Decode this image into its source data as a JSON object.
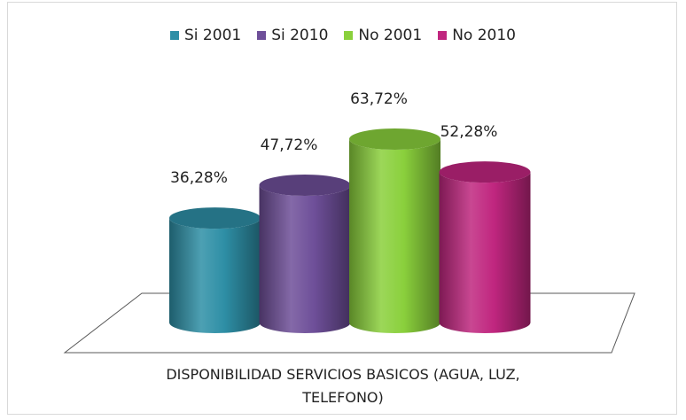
{
  "chart_data": {
    "type": "bar",
    "categories": [
      "DISPONIBILIDAD SERVICIOS BASICOS (AGUA, LUZ, TELEFONO)"
    ],
    "xlabel_line1": "DISPONIBILIDAD SERVICIOS BASICOS (AGUA, LUZ,",
    "xlabel_line2": "TELEFONO)",
    "series": [
      {
        "name": "Si 2001",
        "values": [
          36.28
        ],
        "label": "36,28%",
        "color": "#2e8fa6"
      },
      {
        "name": "Si 2010",
        "values": [
          47.72
        ],
        "label": "47,72%",
        "color": "#6e4f99"
      },
      {
        "name": "No 2001",
        "values": [
          63.72
        ],
        "label": "63,72%",
        "color": "#8ad03c"
      },
      {
        "name": "No 2010",
        "values": [
          52.28
        ],
        "label": "52,28%",
        "color": "#c0267f"
      }
    ],
    "legend_position": "top",
    "grid": false
  }
}
